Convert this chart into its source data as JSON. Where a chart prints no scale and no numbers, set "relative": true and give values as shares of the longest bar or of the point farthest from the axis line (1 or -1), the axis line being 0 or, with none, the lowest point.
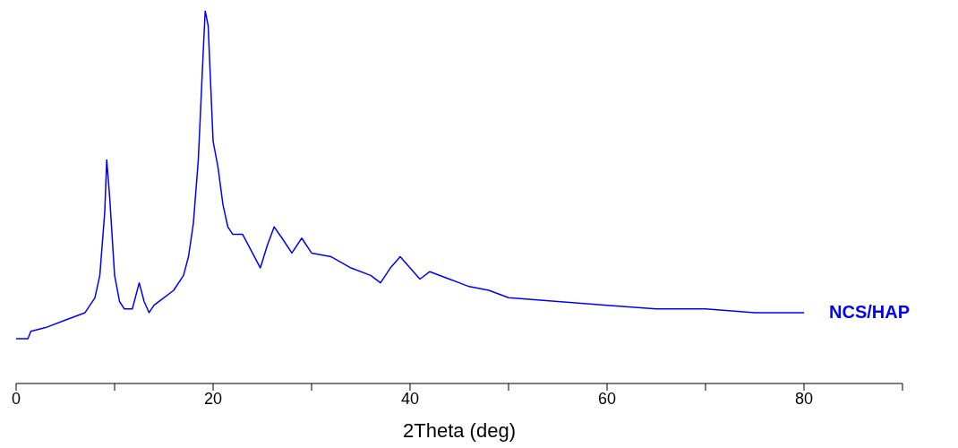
{
  "chart_data": {
    "type": "line",
    "relative": true,
    "xlabel": "2Theta (deg)",
    "xlim": [
      0,
      90
    ],
    "xticks": [
      0,
      {
        "value": 10,
        "label": null
      },
      20,
      {
        "value": 30,
        "label": null
      },
      40,
      {
        "value": 50,
        "label": null
      },
      60,
      {
        "value": 70,
        "label": null
      },
      80,
      {
        "value": 90,
        "label": null
      }
    ],
    "x": [
      0,
      1.2,
      1.5,
      3,
      5,
      7,
      8,
      8.5,
      9,
      9.2,
      9.5,
      10,
      10.5,
      11,
      11.8,
      12.5,
      13,
      13.5,
      14,
      15,
      16,
      17,
      17.5,
      18,
      18.5,
      19,
      19.2,
      19.5,
      20,
      20.5,
      21,
      21.5,
      22,
      23,
      24,
      24.8,
      25.5,
      26.2,
      27,
      28,
      29,
      30,
      32,
      34,
      36,
      37,
      38,
      39,
      40,
      41,
      42,
      44,
      46,
      48,
      50,
      55,
      60,
      65,
      70,
      75,
      80
    ],
    "series": [
      {
        "name": "NCS/HAP",
        "color": "#0000ff",
        "values": [
          0.12,
          0.12,
          0.14,
          0.15,
          0.17,
          0.19,
          0.23,
          0.29,
          0.46,
          0.6,
          0.5,
          0.29,
          0.22,
          0.2,
          0.2,
          0.27,
          0.22,
          0.19,
          0.21,
          0.23,
          0.25,
          0.29,
          0.34,
          0.43,
          0.6,
          0.89,
          1,
          0.96,
          0.65,
          0.58,
          0.48,
          0.42,
          0.4,
          0.4,
          0.35,
          0.31,
          0.37,
          0.42,
          0.39,
          0.35,
          0.39,
          0.35,
          0.34,
          0.31,
          0.29,
          0.27,
          0.31,
          0.34,
          0.31,
          0.28,
          0.3,
          0.28,
          0.26,
          0.25,
          0.23,
          0.22,
          0.21,
          0.2,
          0.2,
          0.19,
          0.19
        ]
      }
    ],
    "grid": false,
    "marker": "none",
    "line_style": "solid"
  }
}
